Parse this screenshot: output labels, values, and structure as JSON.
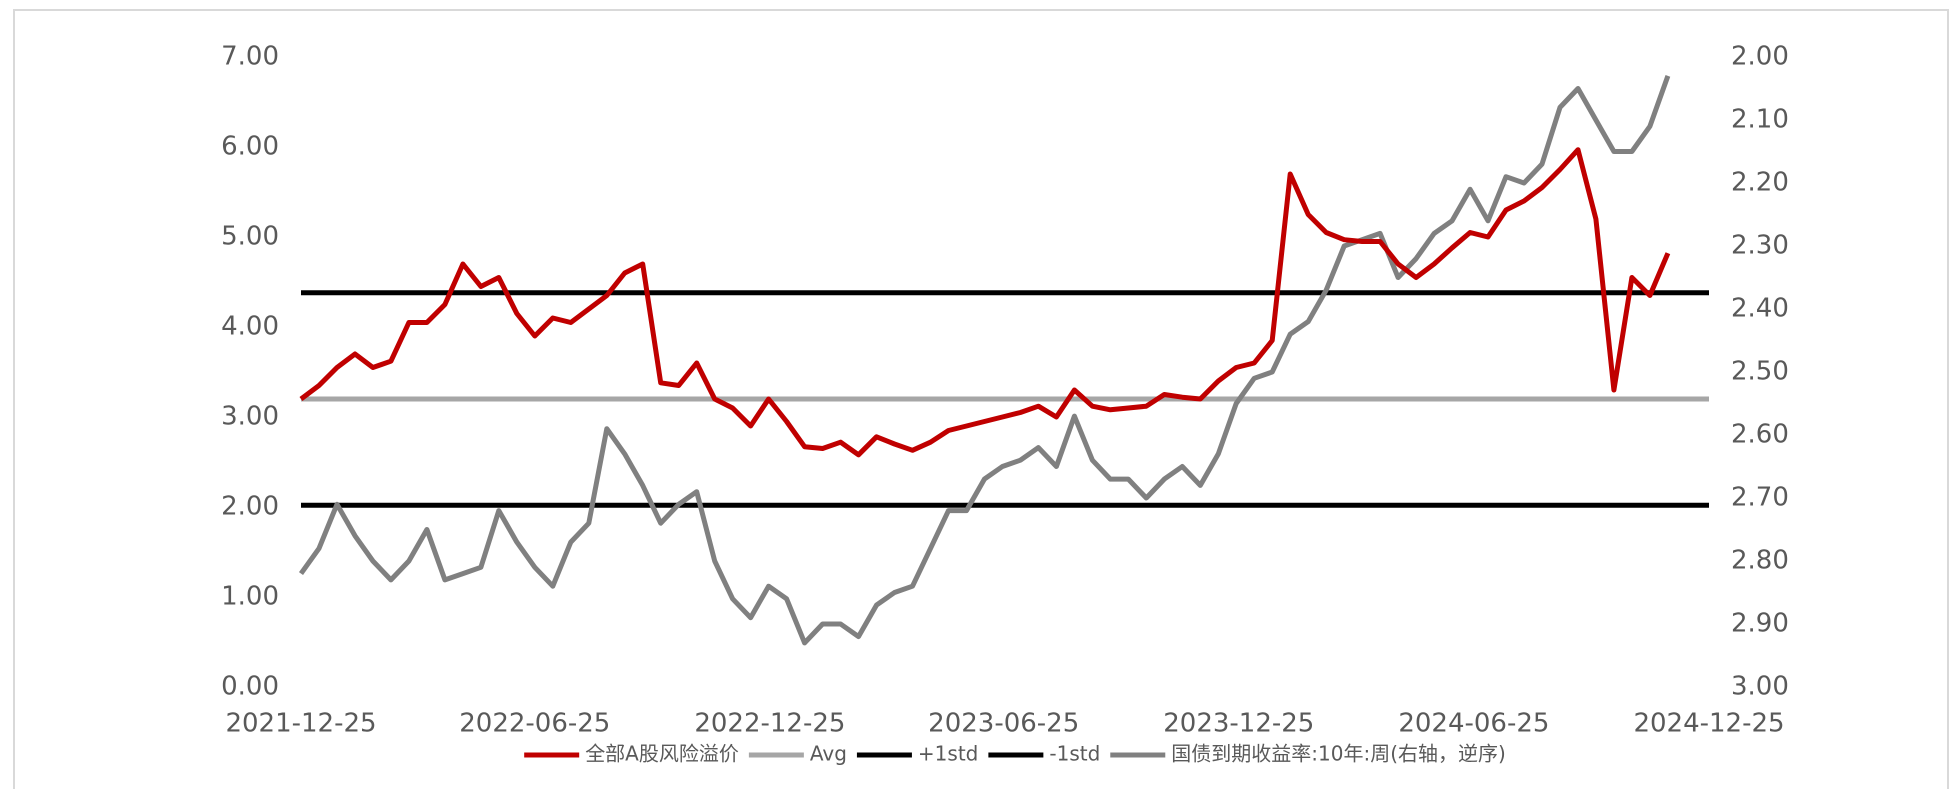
{
  "chart_data": {
    "type": "line",
    "x": [
      "2021-12-25",
      "2022-01-08",
      "2022-01-22",
      "2022-02-05",
      "2022-02-19",
      "2022-03-05",
      "2022-03-19",
      "2022-04-02",
      "2022-04-16",
      "2022-04-30",
      "2022-05-14",
      "2022-05-28",
      "2022-06-11",
      "2022-06-25",
      "2022-07-09",
      "2022-07-23",
      "2022-08-06",
      "2022-08-20",
      "2022-09-03",
      "2022-09-17",
      "2022-10-01",
      "2022-10-15",
      "2022-10-29",
      "2022-11-12",
      "2022-11-26",
      "2022-12-10",
      "2022-12-24",
      "2023-01-07",
      "2023-01-21",
      "2023-02-04",
      "2023-02-18",
      "2023-03-04",
      "2023-03-18",
      "2023-04-01",
      "2023-04-15",
      "2023-04-29",
      "2023-05-13",
      "2023-05-27",
      "2023-06-10",
      "2023-06-24",
      "2023-07-08",
      "2023-07-22",
      "2023-08-05",
      "2023-08-19",
      "2023-09-02",
      "2023-09-16",
      "2023-09-30",
      "2023-10-14",
      "2023-10-28",
      "2023-11-11",
      "2023-11-25",
      "2023-12-09",
      "2023-12-23",
      "2024-01-06",
      "2024-01-20",
      "2024-02-03",
      "2024-02-17",
      "2024-03-02",
      "2024-03-16",
      "2024-03-30",
      "2024-04-13",
      "2024-04-27",
      "2024-05-11",
      "2024-05-25",
      "2024-06-08",
      "2024-06-22",
      "2024-07-06",
      "2024-07-20",
      "2024-08-03",
      "2024-08-17",
      "2024-08-31",
      "2024-09-14",
      "2024-09-28",
      "2024-10-12",
      "2024-10-26",
      "2024-11-09",
      "2024-11-23"
    ],
    "xlim": [
      "2021-12-25",
      "2024-12-25"
    ],
    "xticks": [
      "2021-12-25",
      "2022-06-25",
      "2022-12-25",
      "2023-06-25",
      "2023-12-25",
      "2024-06-25",
      "2024-12-25"
    ],
    "ylim": [
      0,
      7
    ],
    "yticks": [
      {
        "value": 0,
        "label": "0.00"
      },
      {
        "value": 1,
        "label": "1.00"
      },
      {
        "value": 2,
        "label": "2.00"
      },
      {
        "value": 3,
        "label": "3.00"
      },
      {
        "value": 4,
        "label": "4.00"
      },
      {
        "value": 5,
        "label": "5.00"
      },
      {
        "value": 6,
        "label": "6.00"
      },
      {
        "value": 7,
        "label": "7.00"
      }
    ],
    "y2lim": [
      3,
      2
    ],
    "y2ticks": [
      {
        "value": 2,
        "label": "2.00"
      },
      {
        "value": 2.1,
        "label": "2.10"
      },
      {
        "value": 2.2,
        "label": "2.20"
      },
      {
        "value": 2.3,
        "label": "2.30"
      },
      {
        "value": 2.4,
        "label": "2.40"
      },
      {
        "value": 2.5,
        "label": "2.50"
      },
      {
        "value": 2.6,
        "label": "2.60"
      },
      {
        "value": 2.7,
        "label": "2.70"
      },
      {
        "value": 2.8,
        "label": "2.80"
      },
      {
        "value": 2.9,
        "label": "2.90"
      },
      {
        "value": 3,
        "label": "3.00"
      }
    ],
    "series": [
      {
        "name": "全部A股风险溢价",
        "color": "#c00000",
        "values": [
          3.2,
          3.35,
          3.55,
          3.7,
          3.55,
          3.62,
          4.05,
          4.05,
          4.25,
          4.7,
          4.45,
          4.55,
          4.15,
          3.9,
          4.1,
          4.05,
          4.2,
          4.35,
          4.6,
          4.7,
          3.38,
          3.35,
          3.6,
          3.2,
          3.1,
          2.9,
          3.2,
          2.95,
          2.67,
          2.65,
          2.72,
          2.58,
          2.78,
          2.7,
          2.63,
          2.72,
          2.85,
          2.9,
          2.95,
          3.0,
          3.05,
          3.12,
          3.0,
          3.3,
          3.12,
          3.08,
          3.1,
          3.12,
          3.25,
          3.22,
          3.2,
          3.4,
          3.55,
          3.6,
          3.85,
          5.7,
          5.25,
          5.05,
          4.97,
          4.95,
          4.95,
          4.7,
          4.55,
          4.7,
          4.88,
          5.05,
          5.0,
          5.3,
          5.4,
          5.55,
          5.75,
          5.97,
          5.2,
          3.3,
          4.55,
          4.35,
          4.82
        ]
      },
      {
        "name": "Avg",
        "color": "#a6a6a6",
        "value": 3.2
      },
      {
        "name": "+1std",
        "color": "#000000",
        "value": 4.38
      },
      {
        "name": "-1std",
        "color": "#000000",
        "value": 2.02
      },
      {
        "name": "国债到期收益率:10年:周(右轴，逆序)",
        "color": "#808080",
        "axis": "y2",
        "values": [
          2.82,
          2.78,
          2.71,
          2.76,
          2.8,
          2.83,
          2.8,
          2.75,
          2.83,
          2.82,
          2.81,
          2.72,
          2.77,
          2.81,
          2.84,
          2.77,
          2.74,
          2.59,
          2.63,
          2.68,
          2.74,
          2.71,
          2.69,
          2.8,
          2.86,
          2.89,
          2.84,
          2.86,
          2.93,
          2.9,
          2.9,
          2.92,
          2.87,
          2.85,
          2.84,
          2.78,
          2.72,
          2.72,
          2.67,
          2.65,
          2.64,
          2.62,
          2.65,
          2.57,
          2.64,
          2.67,
          2.67,
          2.7,
          2.67,
          2.65,
          2.68,
          2.63,
          2.55,
          2.51,
          2.5,
          2.44,
          2.42,
          2.37,
          2.3,
          2.29,
          2.28,
          2.35,
          2.32,
          2.28,
          2.26,
          2.21,
          2.26,
          2.19,
          2.2,
          2.17,
          2.08,
          2.05,
          2.1,
          2.15,
          2.15,
          2.11,
          2.03
        ]
      }
    ]
  }
}
